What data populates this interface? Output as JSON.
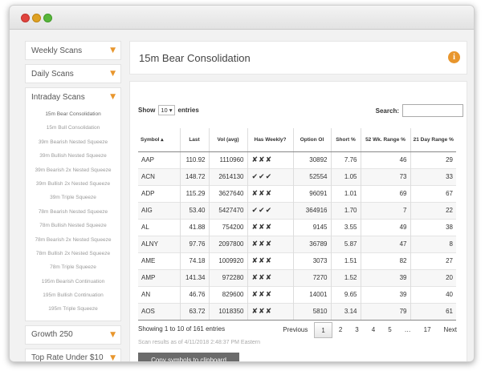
{
  "sidebar": {
    "sections": [
      {
        "label": "Weekly Scans"
      },
      {
        "label": "Daily Scans"
      },
      {
        "label": "Intraday Scans"
      },
      {
        "label": "Growth 250"
      },
      {
        "label": "Top Rate Under $10"
      }
    ],
    "intraday_items": [
      "15m Bear Consolidation",
      "15m Bull Consolidation",
      "39m Bearish Nested Squeeze",
      "39m Bullish Nested Squeeze",
      "39m Bearish 2x Nested Squeeze",
      "39m Bullish 2x Nested Squeeze",
      "39m Triple Squeeze",
      "78m Bearish Nested Squeeze",
      "78m Bullish Nested Squeeze",
      "78m Bearish 2x Nested Squeeze",
      "78m Bullish 2x Nested Squeeze",
      "78m Triple Squeeze",
      "195m Bearish Continuation",
      "195m Bullish Continuation",
      "195m Triple Squeeze"
    ]
  },
  "header": {
    "title": "15m Bear Consolidation",
    "info_icon": "info-icon"
  },
  "controls": {
    "show_label": "Show",
    "entries_value": "10",
    "entries_label": "entries",
    "search_label": "Search:"
  },
  "table": {
    "columns": [
      "Symbol ▴",
      "Last",
      "Vol (avg)",
      "Has Weekly?",
      "Option OI",
      "Short %",
      "52 Wk. Range %",
      "21 Day Range %"
    ],
    "rows": [
      {
        "symbol": "AAP",
        "last": "110.92",
        "vol": "1110960",
        "weekly": "✘✘✘",
        "oi": "30892",
        "short": "7.76",
        "wk52": "46",
        "d21": "29"
      },
      {
        "symbol": "ACN",
        "last": "148.72",
        "vol": "2614130",
        "weekly": "✔✔✔",
        "oi": "52554",
        "short": "1.05",
        "wk52": "73",
        "d21": "33"
      },
      {
        "symbol": "ADP",
        "last": "115.29",
        "vol": "3627640",
        "weekly": "✘✘✘",
        "oi": "96091",
        "short": "1.01",
        "wk52": "69",
        "d21": "67"
      },
      {
        "symbol": "AIG",
        "last": "53.40",
        "vol": "5427470",
        "weekly": "✔✔✔",
        "oi": "364916",
        "short": "1.70",
        "wk52": "7",
        "d21": "22"
      },
      {
        "symbol": "AL",
        "last": "41.88",
        "vol": "754200",
        "weekly": "✘✘✘",
        "oi": "9145",
        "short": "3.55",
        "wk52": "49",
        "d21": "38"
      },
      {
        "symbol": "ALNY",
        "last": "97.76",
        "vol": "2097800",
        "weekly": "✘✘✘",
        "oi": "36789",
        "short": "5.87",
        "wk52": "47",
        "d21": "8"
      },
      {
        "symbol": "AME",
        "last": "74.18",
        "vol": "1009920",
        "weekly": "✘✘✘",
        "oi": "3073",
        "short": "1.51",
        "wk52": "82",
        "d21": "27"
      },
      {
        "symbol": "AMP",
        "last": "141.34",
        "vol": "972280",
        "weekly": "✘✘✘",
        "oi": "7270",
        "short": "1.52",
        "wk52": "39",
        "d21": "20"
      },
      {
        "symbol": "AN",
        "last": "46.76",
        "vol": "829600",
        "weekly": "✘✘✘",
        "oi": "14001",
        "short": "9.65",
        "wk52": "39",
        "d21": "40"
      },
      {
        "symbol": "AOS",
        "last": "63.72",
        "vol": "1018350",
        "weekly": "✘✘✘",
        "oi": "5810",
        "short": "3.14",
        "wk52": "79",
        "d21": "61"
      }
    ]
  },
  "footer": {
    "showing": "Showing 1 to 10 of 161 entries",
    "pages": [
      "Previous",
      "1",
      "2",
      "3",
      "4",
      "5",
      "…",
      "17",
      "Next"
    ],
    "current_page": "1",
    "scan_note": "Scan results as of 4/11/2018 2:48:37 PM Eastern",
    "copy_label": "Copy symbols to clipboard"
  },
  "colors": {
    "accent": "#e8962d",
    "button": "#6b6b6b"
  }
}
